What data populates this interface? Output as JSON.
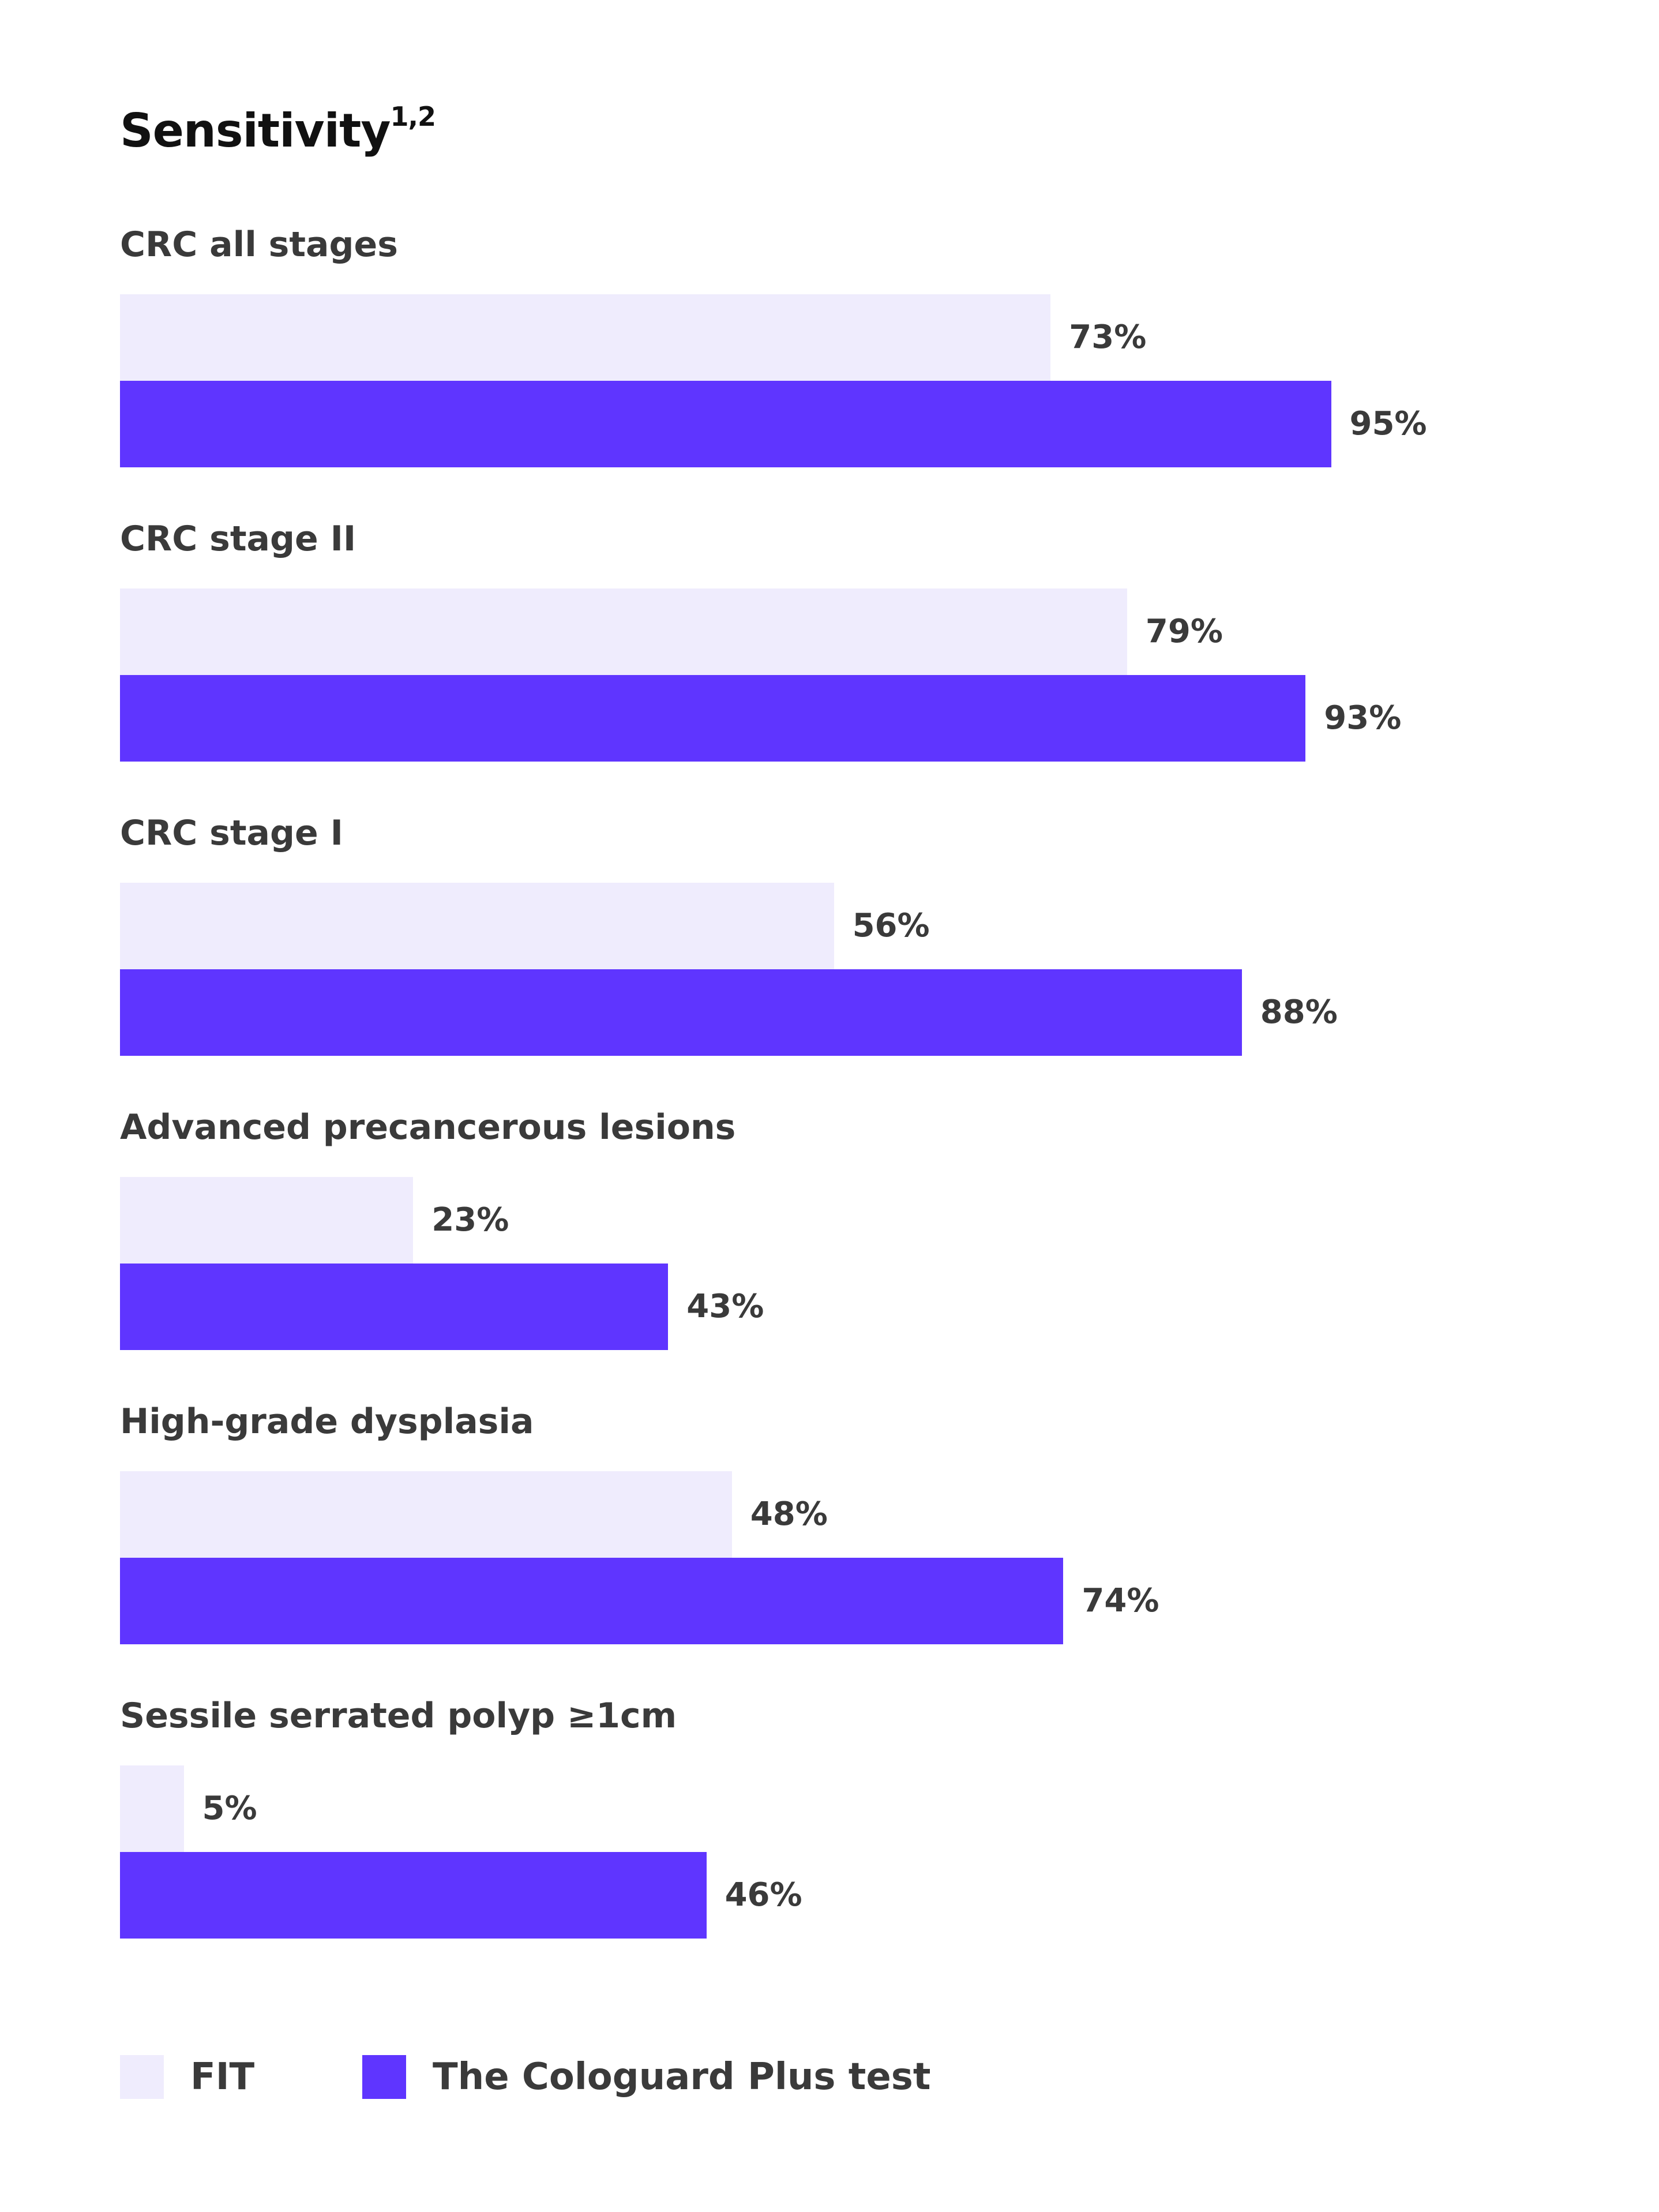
{
  "chart_data": {
    "type": "bar",
    "orientation": "horizontal",
    "title": "Sensitivity",
    "title_superscript": "1,2",
    "categories": [
      "CRC all stages",
      "CRC stage II",
      "CRC stage I",
      "Advanced precancerous lesions",
      "High-grade dysplasia",
      "Sessile serrated polyp ≥1cm"
    ],
    "series": [
      {
        "name": "FIT",
        "color": "#efecfd",
        "values": [
          73,
          79,
          56,
          23,
          48,
          5
        ],
        "labels": [
          "73%",
          "79%",
          "56%",
          "23%",
          "48%",
          "5%"
        ]
      },
      {
        "name": "The Cologuard Plus test",
        "color": "#5f35ff",
        "values": [
          95,
          93,
          88,
          43,
          74,
          46
        ],
        "labels": [
          "95%",
          "93%",
          "88%",
          "43%",
          "74%",
          "46%"
        ]
      }
    ],
    "xlim": [
      0,
      100
    ],
    "grid": false,
    "legend_position": "bottom-left"
  }
}
